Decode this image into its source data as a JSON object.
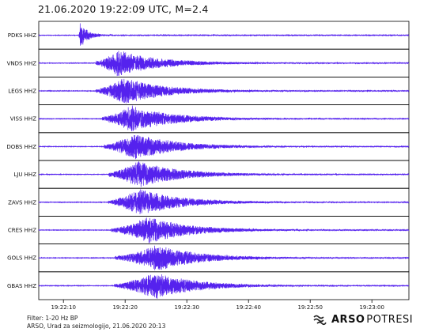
{
  "title": "21.06.2020  19:22:09 UTC, M=2.4",
  "chart_data": {
    "type": "line",
    "title": "21.06.2020  19:22:09 UTC, M=2.4",
    "xlabel": "",
    "ylabel": "",
    "x_tick_labels": [
      "19:22:10",
      "19:22:20",
      "19:22:30",
      "19:22:40",
      "19:22:50",
      "19:23:00"
    ],
    "x_range_seconds_after_1922": [
      6,
      66
    ],
    "trace_color": "#5522ee",
    "series": [
      {
        "name": "PDKS HHZ",
        "p_arrival": "19:22:12.5",
        "peak_time": "19:22:12.7",
        "relative_amplitude": 1.0
      },
      {
        "name": "VNDS HHZ",
        "p_arrival": "19:22:15.3",
        "peak_time": "19:22:18.7",
        "relative_amplitude": 1.0
      },
      {
        "name": "LEGS HHZ",
        "p_arrival": "19:22:15.3",
        "peak_time": "19:22:19.8",
        "relative_amplitude": 1.0
      },
      {
        "name": "VISS HHZ",
        "p_arrival": "19:22:16.3",
        "peak_time": "19:22:21.0",
        "relative_amplitude": 1.0
      },
      {
        "name": "DOBS HHZ",
        "p_arrival": "19:22:16.6",
        "peak_time": "19:22:21.6",
        "relative_amplitude": 1.0
      },
      {
        "name": "LJU HHZ",
        "p_arrival": "19:22:17.3",
        "peak_time": "19:22:22.2",
        "relative_amplitude": 1.0
      },
      {
        "name": "ZAVS HHZ",
        "p_arrival": "19:22:17.3",
        "peak_time": "19:22:22.4",
        "relative_amplitude": 1.0
      },
      {
        "name": "CRES HHZ",
        "p_arrival": "19:22:17.8",
        "peak_time": "19:22:23.8",
        "relative_amplitude": 1.0
      },
      {
        "name": "GOLS HHZ",
        "p_arrival": "19:22:18.4",
        "peak_time": "19:22:25.2",
        "relative_amplitude": 1.0
      },
      {
        "name": "GBAS HHZ",
        "p_arrival": "19:22:18.3",
        "peak_time": "19:22:24.9",
        "relative_amplitude": 1.0
      }
    ]
  },
  "footer": {
    "filter": "Filter: 1-20 Hz BP",
    "credit": "ARSO, Urad za seizmologijo, 21.06.2020  20:13"
  },
  "logo": {
    "bold": "ARSO",
    "light": "POTRESI",
    "icon": "arso-wave-logo-icon"
  }
}
